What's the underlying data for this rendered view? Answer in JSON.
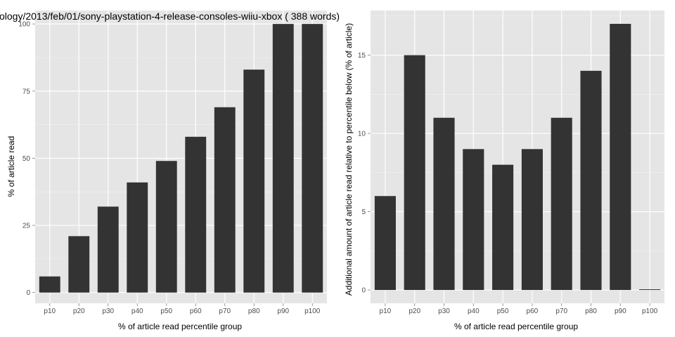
{
  "chart_data": [
    {
      "type": "bar",
      "title": "ology/2013/feb/01/sony-playstation-4-release-consoles-wiiu-xbox ( 388 words)",
      "xlabel": "% of article read percentile group",
      "ylabel": "% of article read",
      "categories": [
        "p10",
        "p20",
        "p30",
        "p40",
        "p50",
        "p60",
        "p70",
        "p80",
        "p90",
        "p100"
      ],
      "values": [
        6,
        21,
        32,
        41,
        49,
        58,
        69,
        83,
        100,
        100
      ],
      "ylim": [
        -4,
        105
      ],
      "yticks": [
        0,
        25,
        50,
        75,
        100
      ],
      "ytick_labels": [
        "0",
        "25",
        "50",
        "75",
        "100"
      ],
      "grid": true,
      "bar_color": "#333333",
      "panel_color": "#e5e5e5"
    },
    {
      "type": "bar",
      "title": "",
      "xlabel": "% of article read percentile group",
      "ylabel": "Additional amount of article read relative to percentile below (% of article)",
      "categories": [
        "p10",
        "p20",
        "p30",
        "p40",
        "p50",
        "p60",
        "p70",
        "p80",
        "p90",
        "p100"
      ],
      "values": [
        6,
        15,
        11,
        9,
        8,
        9,
        11,
        14,
        17,
        0
      ],
      "ylim": [
        -0.85,
        17.85
      ],
      "yticks": [
        0,
        5,
        10,
        15
      ],
      "ytick_labels": [
        "0",
        "5",
        "10",
        "15"
      ],
      "grid": true,
      "bar_color": "#333333",
      "panel_color": "#e5e5e5"
    }
  ]
}
